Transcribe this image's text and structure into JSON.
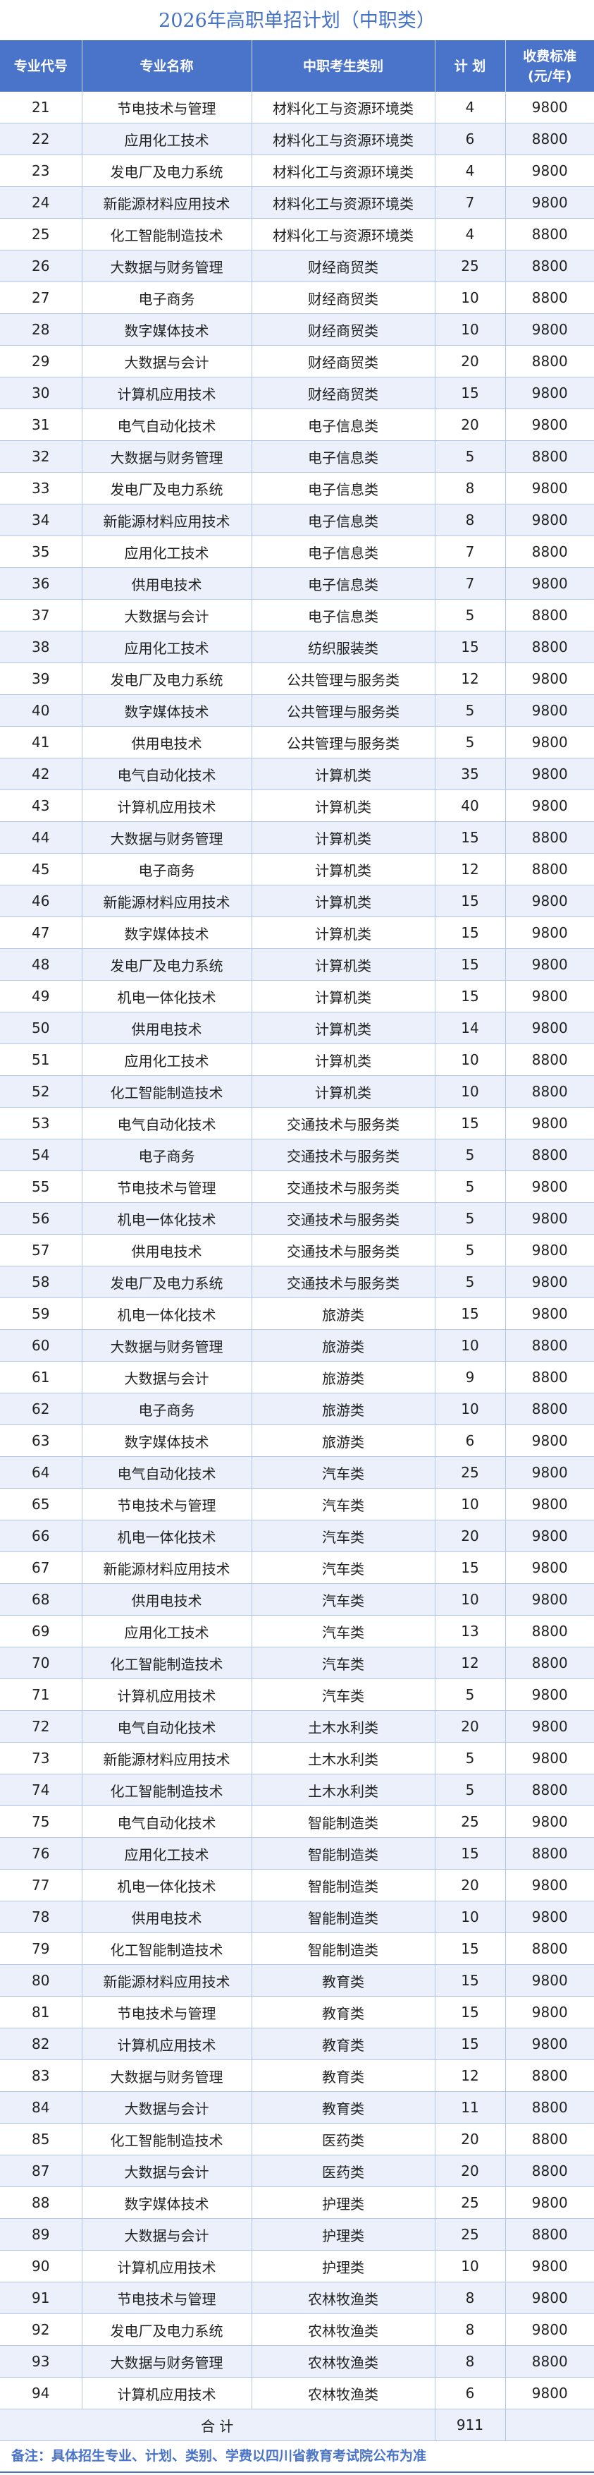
{
  "title": "2026年高职单招计划（中职类）",
  "header": {
    "code": "专业代号",
    "major": "专业名称",
    "category": "中职考生类别",
    "plan": "计 划",
    "fee_line1": "收费标准",
    "fee_line2": "(元/年)"
  },
  "rows": [
    [
      "21",
      "节电技术与管理",
      "材料化工与资源环境类",
      "4",
      "9800"
    ],
    [
      "22",
      "应用化工技术",
      "材料化工与资源环境类",
      "6",
      "8800"
    ],
    [
      "23",
      "发电厂及电力系统",
      "材料化工与资源环境类",
      "4",
      "9800"
    ],
    [
      "24",
      "新能源材料应用技术",
      "材料化工与资源环境类",
      "7",
      "9800"
    ],
    [
      "25",
      "化工智能制造技术",
      "材料化工与资源环境类",
      "4",
      "8800"
    ],
    [
      "26",
      "大数据与财务管理",
      "财经商贸类",
      "25",
      "8800"
    ],
    [
      "27",
      "电子商务",
      "财经商贸类",
      "10",
      "8800"
    ],
    [
      "28",
      "数字媒体技术",
      "财经商贸类",
      "10",
      "9800"
    ],
    [
      "29",
      "大数据与会计",
      "财经商贸类",
      "20",
      "8800"
    ],
    [
      "30",
      "计算机应用技术",
      "财经商贸类",
      "15",
      "9800"
    ],
    [
      "31",
      "电气自动化技术",
      "电子信息类",
      "20",
      "9800"
    ],
    [
      "32",
      "大数据与财务管理",
      "电子信息类",
      "5",
      "8800"
    ],
    [
      "33",
      "发电厂及电力系统",
      "电子信息类",
      "8",
      "9800"
    ],
    [
      "34",
      "新能源材料应用技术",
      "电子信息类",
      "8",
      "9800"
    ],
    [
      "35",
      "应用化工技术",
      "电子信息类",
      "7",
      "8800"
    ],
    [
      "36",
      "供用电技术",
      "电子信息类",
      "7",
      "9800"
    ],
    [
      "37",
      "大数据与会计",
      "电子信息类",
      "5",
      "8800"
    ],
    [
      "38",
      "应用化工技术",
      "纺织服装类",
      "15",
      "8800"
    ],
    [
      "39",
      "发电厂及电力系统",
      "公共管理与服务类",
      "12",
      "9800"
    ],
    [
      "40",
      "数字媒体技术",
      "公共管理与服务类",
      "5",
      "9800"
    ],
    [
      "41",
      "供用电技术",
      "公共管理与服务类",
      "5",
      "9800"
    ],
    [
      "42",
      "电气自动化技术",
      "计算机类",
      "35",
      "9800"
    ],
    [
      "43",
      "计算机应用技术",
      "计算机类",
      "40",
      "9800"
    ],
    [
      "44",
      "大数据与财务管理",
      "计算机类",
      "15",
      "8800"
    ],
    [
      "45",
      "电子商务",
      "计算机类",
      "12",
      "8800"
    ],
    [
      "46",
      "新能源材料应用技术",
      "计算机类",
      "15",
      "9800"
    ],
    [
      "47",
      "数字媒体技术",
      "计算机类",
      "15",
      "9800"
    ],
    [
      "48",
      "发电厂及电力系统",
      "计算机类",
      "15",
      "9800"
    ],
    [
      "49",
      "机电一体化技术",
      "计算机类",
      "15",
      "9800"
    ],
    [
      "50",
      "供用电技术",
      "计算机类",
      "14",
      "9800"
    ],
    [
      "51",
      "应用化工技术",
      "计算机类",
      "10",
      "8800"
    ],
    [
      "52",
      "化工智能制造技术",
      "计算机类",
      "10",
      "8800"
    ],
    [
      "53",
      "电气自动化技术",
      "交通技术与服务类",
      "15",
      "9800"
    ],
    [
      "54",
      "电子商务",
      "交通技术与服务类",
      "5",
      "8800"
    ],
    [
      "55",
      "节电技术与管理",
      "交通技术与服务类",
      "5",
      "9800"
    ],
    [
      "56",
      "机电一体化技术",
      "交通技术与服务类",
      "5",
      "9800"
    ],
    [
      "57",
      "供用电技术",
      "交通技术与服务类",
      "5",
      "9800"
    ],
    [
      "58",
      "发电厂及电力系统",
      "交通技术与服务类",
      "5",
      "9800"
    ],
    [
      "59",
      "机电一体化技术",
      "旅游类",
      "15",
      "9800"
    ],
    [
      "60",
      "大数据与财务管理",
      "旅游类",
      "10",
      "8800"
    ],
    [
      "61",
      "大数据与会计",
      "旅游类",
      "9",
      "8800"
    ],
    [
      "62",
      "电子商务",
      "旅游类",
      "10",
      "8800"
    ],
    [
      "63",
      "数字媒体技术",
      "旅游类",
      "6",
      "9800"
    ],
    [
      "64",
      "电气自动化技术",
      "汽车类",
      "25",
      "9800"
    ],
    [
      "65",
      "节电技术与管理",
      "汽车类",
      "10",
      "9800"
    ],
    [
      "66",
      "机电一体化技术",
      "汽车类",
      "20",
      "9800"
    ],
    [
      "67",
      "新能源材料应用技术",
      "汽车类",
      "15",
      "9800"
    ],
    [
      "68",
      "供用电技术",
      "汽车类",
      "10",
      "9800"
    ],
    [
      "69",
      "应用化工技术",
      "汽车类",
      "13",
      "8800"
    ],
    [
      "70",
      "化工智能制造技术",
      "汽车类",
      "12",
      "8800"
    ],
    [
      "71",
      "计算机应用技术",
      "汽车类",
      "5",
      "9800"
    ],
    [
      "72",
      "电气自动化技术",
      "土木水利类",
      "20",
      "9800"
    ],
    [
      "73",
      "新能源材料应用技术",
      "土木水利类",
      "5",
      "9800"
    ],
    [
      "74",
      "化工智能制造技术",
      "土木水利类",
      "5",
      "8800"
    ],
    [
      "75",
      "电气自动化技术",
      "智能制造类",
      "25",
      "9800"
    ],
    [
      "76",
      "应用化工技术",
      "智能制造类",
      "15",
      "8800"
    ],
    [
      "77",
      "机电一体化技术",
      "智能制造类",
      "20",
      "9800"
    ],
    [
      "78",
      "供用电技术",
      "智能制造类",
      "10",
      "9800"
    ],
    [
      "79",
      "化工智能制造技术",
      "智能制造类",
      "15",
      "8800"
    ],
    [
      "80",
      "新能源材料应用技术",
      "教育类",
      "15",
      "9800"
    ],
    [
      "81",
      "节电技术与管理",
      "教育类",
      "15",
      "9800"
    ],
    [
      "82",
      "计算机应用技术",
      "教育类",
      "15",
      "9800"
    ],
    [
      "83",
      "大数据与财务管理",
      "教育类",
      "12",
      "8800"
    ],
    [
      "84",
      "大数据与会计",
      "教育类",
      "11",
      "8800"
    ],
    [
      "85",
      "化工智能制造技术",
      "医药类",
      "20",
      "8800"
    ],
    [
      "87",
      "大数据与会计",
      "医药类",
      "20",
      "8800"
    ],
    [
      "88",
      "数字媒体技术",
      "护理类",
      "25",
      "9800"
    ],
    [
      "89",
      "大数据与会计",
      "护理类",
      "25",
      "8800"
    ],
    [
      "90",
      "计算机应用技术",
      "护理类",
      "10",
      "9800"
    ],
    [
      "91",
      "节电技术与管理",
      "农林牧渔类",
      "8",
      "9800"
    ],
    [
      "92",
      "发电厂及电力系统",
      "农林牧渔类",
      "8",
      "9800"
    ],
    [
      "93",
      "大数据与财务管理",
      "农林牧渔类",
      "8",
      "8800"
    ],
    [
      "94",
      "计算机应用技术",
      "农林牧渔类",
      "6",
      "9800"
    ]
  ],
  "total": {
    "label": "合 计",
    "plan": "911"
  },
  "note": "备注：具体招生专业、计划、类别、学费以四川省教育考试院公布为准",
  "colors": {
    "header_bg": "#4a74c9",
    "alt_row": "#ebf0fa",
    "grid": "#b4c6e7",
    "title": "#4472c4"
  }
}
